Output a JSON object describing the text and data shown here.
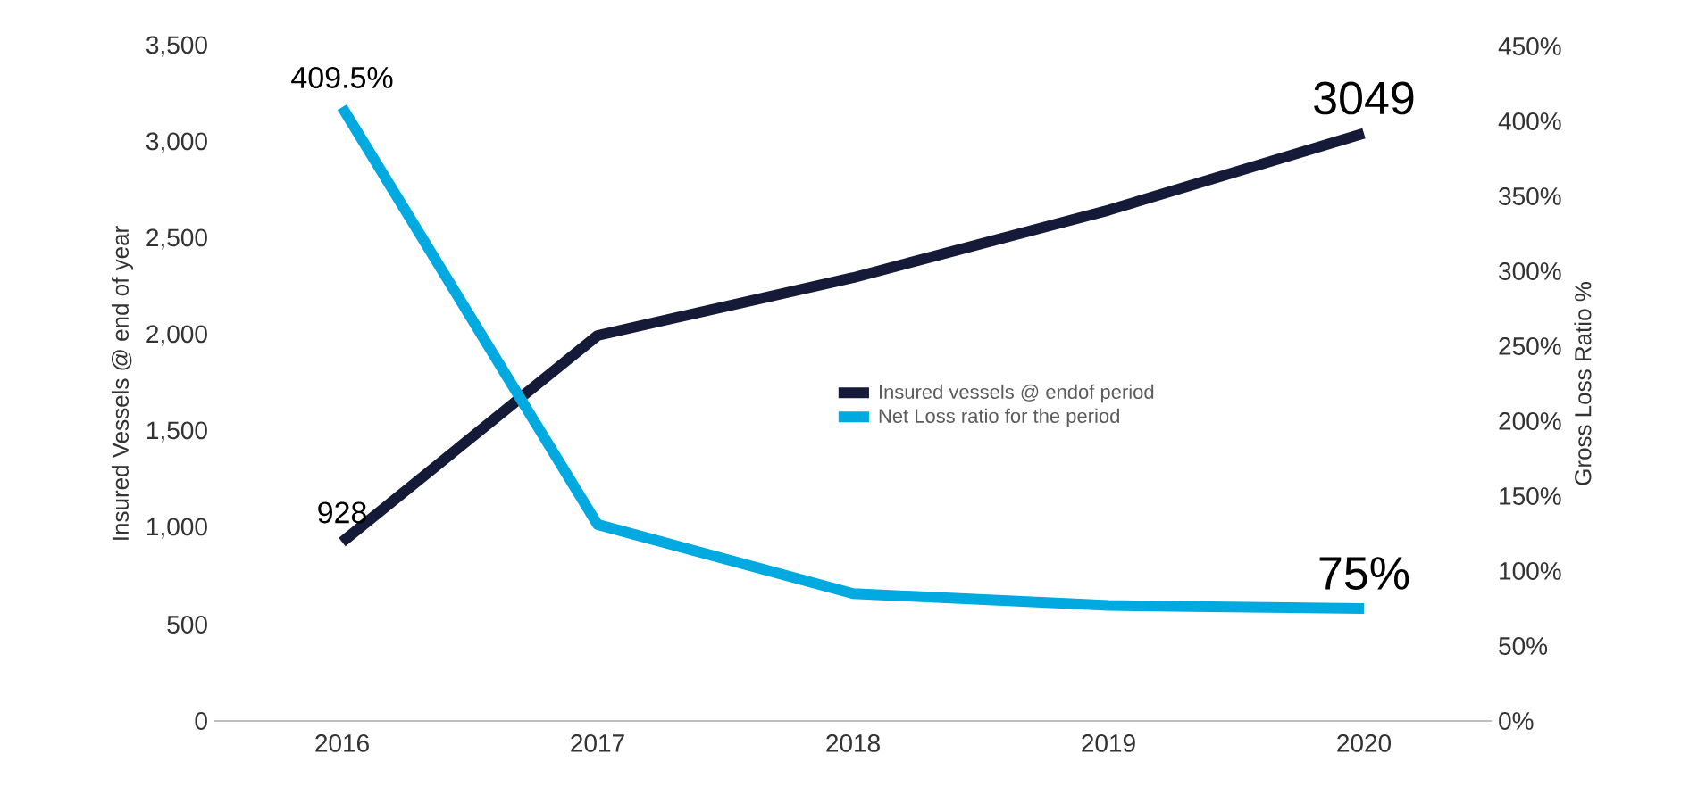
{
  "chart_data": {
    "type": "line",
    "categories": [
      "2016",
      "2017",
      "2018",
      "2019",
      "2020"
    ],
    "series": [
      {
        "name": "Insured vessels @ endof period",
        "color": "#141a38",
        "values": [
          928,
          2000,
          2300,
          2650,
          3049
        ],
        "value_labels": [
          "928",
          null,
          null,
          null,
          "3049"
        ]
      },
      {
        "name": "Net Loss ratio for the period",
        "color": "#00a9e0",
        "axis": "y2",
        "values": [
          409.5,
          131,
          85,
          77,
          75
        ],
        "value_labels": [
          "409.5%",
          null,
          null,
          null,
          "75%"
        ]
      }
    ],
    "ylabel": "Insured Vessels @ end of year",
    "y2label": "Gross Loss Ratio %",
    "ylim": [
      0,
      3500
    ],
    "yticks": [
      0,
      500,
      {
        "value": 1000,
        "label": "1,000"
      },
      {
        "value": 1500,
        "label": "1,500"
      },
      {
        "value": 2000,
        "label": "2,000"
      },
      {
        "value": 2500,
        "label": "2,500"
      },
      {
        "value": 3000,
        "label": "3,000"
      },
      {
        "value": 3500,
        "label": "3,500"
      }
    ],
    "y2lim": [
      0,
      450
    ],
    "y2ticks": [
      {
        "value": 0,
        "label": "0%"
      },
      {
        "value": 50,
        "label": "50%"
      },
      {
        "value": 100,
        "label": "100%"
      },
      {
        "value": 150,
        "label": "150%"
      },
      {
        "value": 200,
        "label": "200%"
      },
      {
        "value": 250,
        "label": "250%"
      },
      {
        "value": 300,
        "label": "300%"
      },
      {
        "value": 350,
        "label": "350%"
      },
      {
        "value": 400,
        "label": "400%"
      },
      {
        "value": 450,
        "label": "450%"
      }
    ],
    "legend": "center",
    "grid": false,
    "marker": "none",
    "line_style": "solid"
  }
}
